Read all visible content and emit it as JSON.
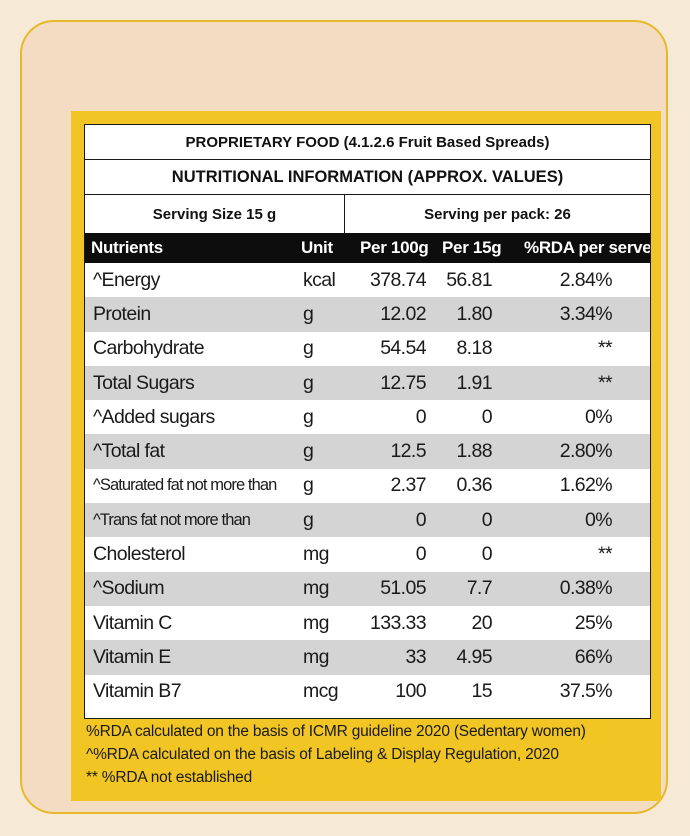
{
  "header": {
    "title": "PROPRIETARY FOOD (4.1.2.6 Fruit Based Spreads)",
    "subtitle": "NUTRITIONAL INFORMATION (APPROX. VALUES)",
    "serving_size": "Serving Size 15 g",
    "serving_per_pack": "Serving per pack: 26"
  },
  "columns": [
    "Nutrients",
    "Unit",
    "Per 100g",
    "Per 15g",
    "%RDA per serve"
  ],
  "rows": [
    {
      "nutrient": "^Energy",
      "unit": "kcal",
      "per100": "378.74",
      "per15": "56.81",
      "rda": "2.84%"
    },
    {
      "nutrient": "Protein",
      "unit": "g",
      "per100": "12.02",
      "per15": "1.80",
      "rda": "3.34%"
    },
    {
      "nutrient": "Carbohydrate",
      "unit": "g",
      "per100": "54.54",
      "per15": "8.18",
      "rda": "**"
    },
    {
      "nutrient": "Total Sugars",
      "unit": "g",
      "per100": "12.75",
      "per15": "1.91",
      "rda": "**"
    },
    {
      "nutrient": "^Added sugars",
      "unit": "g",
      "per100": "0",
      "per15": "0",
      "rda": "0%"
    },
    {
      "nutrient": "^Total fat",
      "unit": "g",
      "per100": "12.5",
      "per15": "1.88",
      "rda": "2.80%"
    },
    {
      "nutrient": "^Saturated fat not more than",
      "unit": "g",
      "per100": "2.37",
      "per15": "0.36",
      "rda": "1.62%"
    },
    {
      "nutrient": "^Trans fat not more than",
      "unit": "g",
      "per100": "0",
      "per15": "0",
      "rda": "0%"
    },
    {
      "nutrient": "Cholesterol",
      "unit": "mg",
      "per100": "0",
      "per15": "0",
      "rda": "**"
    },
    {
      "nutrient": "^Sodium",
      "unit": "mg",
      "per100": "51.05",
      "per15": "7.7",
      "rda": "0.38%"
    },
    {
      "nutrient": "Vitamin C",
      "unit": "mg",
      "per100": "133.33",
      "per15": "20",
      "rda": "25%"
    },
    {
      "nutrient": "Vitamin E",
      "unit": "mg",
      "per100": "33",
      "per15": "4.95",
      "rda": "66%"
    },
    {
      "nutrient": "Vitamin B7",
      "unit": "mcg",
      "per100": "100",
      "per15": "15",
      "rda": "37.5%"
    }
  ],
  "footnotes": [
    "%RDA calculated on the basis of ICMR guideline 2020 (Sedentary women)",
    "^%RDA  calculated on the basis of Labeling & Display Regulation, 2020",
    "** %RDA not established"
  ],
  "colors": {
    "frame_yellow": "#f0c524",
    "card_bg": "#f3dcc2",
    "shade_row": "#d4d4d4",
    "header_bg": "#0d0d0d"
  }
}
